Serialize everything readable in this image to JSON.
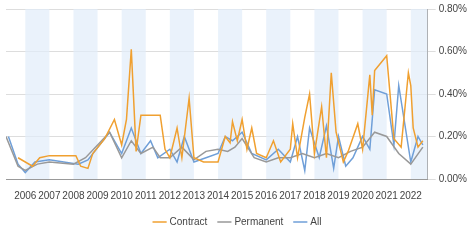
{
  "chart_data": {
    "type": "line",
    "xlim": [
      2005.2,
      2022.7
    ],
    "xticks": [
      2006,
      2007,
      2008,
      2009,
      2010,
      2011,
      2012,
      2013,
      2014,
      2015,
      2016,
      2017,
      2018,
      2019,
      2020,
      2021,
      2022
    ],
    "ylim": [
      0,
      0.8
    ],
    "yticks": [
      {
        "value": 0,
        "label": "0.00%"
      },
      {
        "value": 0.2,
        "label": "0.20%"
      },
      {
        "value": 0.4,
        "label": "0.40%"
      },
      {
        "value": 0.6,
        "label": "0.60%"
      },
      {
        "value": 0.8,
        "label": "0.80%"
      }
    ],
    "grid": true,
    "legend": "bottom",
    "series": [
      {
        "name": "Contract",
        "color": "#f0a030",
        "x": [
          2005.7,
          2006.3,
          2006.6,
          2007,
          2008.1,
          2008.3,
          2008.6,
          2008.8,
          2009.3,
          2009.7,
          2010,
          2010.2,
          2010.4,
          2010.6,
          2010.8,
          2011.6,
          2011.8,
          2012,
          2012.3,
          2012.5,
          2012.8,
          2013,
          2013.4,
          2014,
          2014.3,
          2014.5,
          2014.6,
          2014.8,
          2015,
          2015.2,
          2015.4,
          2015.6,
          2016,
          2016.3,
          2016.6,
          2017,
          2017.1,
          2017.3,
          2017.6,
          2017.8,
          2018,
          2018.3,
          2018.5,
          2018.7,
          2018.9,
          2019.2,
          2019.4,
          2019.8,
          2020,
          2020.3,
          2020.4,
          2020.5,
          2021,
          2021.3,
          2021.6,
          2021.9,
          2022,
          2022.1,
          2022.3,
          2022.5
        ],
        "values": [
          0.1,
          0.06,
          0.1,
          0.11,
          0.11,
          0.06,
          0.05,
          0.12,
          0.19,
          0.28,
          0.16,
          0.28,
          0.61,
          0.13,
          0.3,
          0.3,
          0.14,
          0.1,
          0.24,
          0.1,
          0.38,
          0.1,
          0.08,
          0.08,
          0.2,
          0.17,
          0.27,
          0.18,
          0.28,
          0.14,
          0.24,
          0.12,
          0.1,
          0.18,
          0.08,
          0.14,
          0.26,
          0.1,
          0.29,
          0.4,
          0.12,
          0.34,
          0.1,
          0.5,
          0.22,
          0.08,
          0.13,
          0.26,
          0.14,
          0.49,
          0.3,
          0.51,
          0.58,
          0.19,
          0.15,
          0.5,
          0.44,
          0.24,
          0.15,
          0.18
        ]
      },
      {
        "name": "Permanent",
        "color": "#999999",
        "x": [
          2005.2,
          2005.7,
          2006,
          2006.5,
          2007,
          2008,
          2008.5,
          2009.5,
          2010,
          2010.4,
          2010.8,
          2011.3,
          2011.6,
          2012,
          2012.5,
          2013,
          2013.5,
          2014,
          2014.4,
          2014.7,
          2015,
          2015.5,
          2016,
          2016.5,
          2017,
          2017.5,
          2018,
          2018.5,
          2019,
          2019.5,
          2020,
          2020.5,
          2021,
          2021.5,
          2022,
          2022.5
        ],
        "values": [
          0.2,
          0.06,
          0.04,
          0.07,
          0.08,
          0.07,
          0.1,
          0.22,
          0.1,
          0.18,
          0.12,
          0.15,
          0.1,
          0.1,
          0.15,
          0.09,
          0.13,
          0.14,
          0.13,
          0.15,
          0.19,
          0.1,
          0.08,
          0.1,
          0.1,
          0.12,
          0.1,
          0.12,
          0.1,
          0.13,
          0.15,
          0.22,
          0.2,
          0.12,
          0.07,
          0.15
        ]
      },
      {
        "name": "All",
        "color": "#6f9fd8",
        "x": [
          2005.3,
          2005.7,
          2006,
          2006.4,
          2007,
          2008.2,
          2008.6,
          2009.5,
          2010,
          2010.4,
          2010.8,
          2011.2,
          2011.5,
          2012,
          2012.3,
          2012.6,
          2013,
          2013.5,
          2014,
          2014.3,
          2014.6,
          2015,
          2015.4,
          2016,
          2016.5,
          2017,
          2017.3,
          2017.6,
          2017.8,
          2018.2,
          2018.5,
          2018.8,
          2019,
          2019.3,
          2019.6,
          2020,
          2020.3,
          2020.5,
          2021,
          2021.3,
          2021.5,
          2022,
          2022.3,
          2022.5
        ],
        "values": [
          0.2,
          0.07,
          0.03,
          0.08,
          0.09,
          0.07,
          0.09,
          0.22,
          0.12,
          0.24,
          0.12,
          0.18,
          0.1,
          0.14,
          0.08,
          0.2,
          0.08,
          0.1,
          0.12,
          0.2,
          0.18,
          0.22,
          0.12,
          0.09,
          0.14,
          0.08,
          0.2,
          0.04,
          0.24,
          0.1,
          0.25,
          0.05,
          0.2,
          0.06,
          0.1,
          0.2,
          0.14,
          0.42,
          0.4,
          0.16,
          0.44,
          0.08,
          0.2,
          0.16
        ]
      }
    ]
  }
}
